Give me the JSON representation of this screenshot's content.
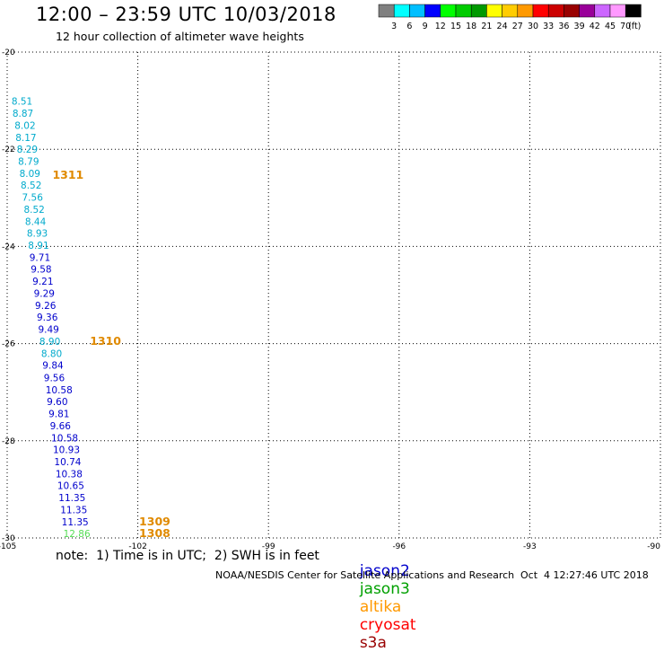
{
  "header": {
    "title": "12:00 – 23:59 UTC 10/03/2018",
    "subtitle": "12 hour collection of altimeter wave heights"
  },
  "colorbar": {
    "colors": [
      "#808080",
      "#00ffff",
      "#00bfff",
      "#0000ff",
      "#00ff00",
      "#00cc00",
      "#009900",
      "#ffff00",
      "#ffcc00",
      "#ff9900",
      "#ff0000",
      "#cc0000",
      "#990000",
      "#990099",
      "#cc66ff",
      "#ff99ff",
      "#000000"
    ],
    "labels": [
      "3",
      "6",
      "9",
      "12",
      "15",
      "18",
      "21",
      "24",
      "27",
      "30",
      "33",
      "36",
      "39",
      "42",
      "45",
      "70"
    ],
    "unit": "(ft)"
  },
  "chart_data": {
    "type": "scatter",
    "x_axis": {
      "range": [
        -105,
        -90
      ],
      "ticks": [
        -105,
        -102,
        -99,
        -96,
        -93,
        -90
      ],
      "tick_labels": [
        "-105",
        "-102",
        "-99",
        "-96",
        "-93",
        "-90"
      ]
    },
    "y_axis": {
      "range": [
        -30,
        -20
      ],
      "ticks": [
        -30,
        -28,
        -26,
        -24,
        -22,
        -20
      ],
      "tick_labels": [
        "-30",
        "-28",
        "-26",
        "-24",
        "-22",
        "-20"
      ]
    },
    "grid": true,
    "points": [
      {
        "lon": -104.9,
        "lat": -21.08,
        "value": "8.51",
        "sat": "altika"
      },
      {
        "lon": -104.88,
        "lat": -21.33,
        "value": "8.87",
        "sat": "altika"
      },
      {
        "lon": -104.83,
        "lat": -21.58,
        "value": "8.02",
        "sat": "altika"
      },
      {
        "lon": -104.81,
        "lat": -21.83,
        "value": "8.17",
        "sat": "altika"
      },
      {
        "lon": -104.78,
        "lat": -22.07,
        "value": "8.29",
        "sat": "altika"
      },
      {
        "lon": -104.75,
        "lat": -22.32,
        "value": "8.79",
        "sat": "altika"
      },
      {
        "lon": -104.72,
        "lat": -22.57,
        "value": "8.09",
        "sat": "altika"
      },
      {
        "lon": -104.69,
        "lat": -22.81,
        "value": "8.52",
        "sat": "altika"
      },
      {
        "lon": -104.66,
        "lat": -23.06,
        "value": "7.56",
        "sat": "altika"
      },
      {
        "lon": -104.62,
        "lat": -23.31,
        "value": "8.52",
        "sat": "altika"
      },
      {
        "lon": -104.59,
        "lat": -23.56,
        "value": "8.44",
        "sat": "altika"
      },
      {
        "lon": -104.55,
        "lat": -23.8,
        "value": "8.93",
        "sat": "altika"
      },
      {
        "lon": -104.52,
        "lat": -24.05,
        "value": "8.91",
        "sat": "altika"
      },
      {
        "lon": -104.49,
        "lat": -24.3,
        "value": "9.71",
        "sat": "jason2"
      },
      {
        "lon": -104.46,
        "lat": -24.54,
        "value": "9.58",
        "sat": "jason2"
      },
      {
        "lon": -104.42,
        "lat": -24.79,
        "value": "9.21",
        "sat": "jason2"
      },
      {
        "lon": -104.39,
        "lat": -25.04,
        "value": "9.29",
        "sat": "jason2"
      },
      {
        "lon": -104.36,
        "lat": -25.29,
        "value": "9.26",
        "sat": "jason2"
      },
      {
        "lon": -104.32,
        "lat": -25.53,
        "value": "9.36",
        "sat": "jason2"
      },
      {
        "lon": -104.29,
        "lat": -25.78,
        "value": "9.49",
        "sat": "jason2"
      },
      {
        "lon": -104.26,
        "lat": -26.03,
        "value": "8.90",
        "sat": "altika"
      },
      {
        "lon": -104.22,
        "lat": -26.28,
        "value": "8.80",
        "sat": "altika"
      },
      {
        "lon": -104.19,
        "lat": -26.52,
        "value": "9.84",
        "sat": "jason2"
      },
      {
        "lon": -104.16,
        "lat": -26.77,
        "value": "9.56",
        "sat": "jason2"
      },
      {
        "lon": -104.12,
        "lat": -27.02,
        "value": "10.58",
        "sat": "jason2"
      },
      {
        "lon": -104.09,
        "lat": -27.26,
        "value": "9.60",
        "sat": "jason2"
      },
      {
        "lon": -104.05,
        "lat": -27.51,
        "value": "9.81",
        "sat": "jason2"
      },
      {
        "lon": -104.02,
        "lat": -27.76,
        "value": "9.66",
        "sat": "jason2"
      },
      {
        "lon": -103.99,
        "lat": -28.01,
        "value": "10.58",
        "sat": "jason2"
      },
      {
        "lon": -103.95,
        "lat": -28.25,
        "value": "10.93",
        "sat": "jason2"
      },
      {
        "lon": -103.92,
        "lat": -28.5,
        "value": "10.74",
        "sat": "jason2"
      },
      {
        "lon": -103.89,
        "lat": -28.75,
        "value": "10.38",
        "sat": "jason2"
      },
      {
        "lon": -103.85,
        "lat": -28.99,
        "value": "10.65",
        "sat": "jason2"
      },
      {
        "lon": -103.82,
        "lat": -29.24,
        "value": "11.35",
        "sat": "jason2"
      },
      {
        "lon": -103.78,
        "lat": -29.49,
        "value": "11.35",
        "sat": "jason2"
      },
      {
        "lon": -103.75,
        "lat": -29.74,
        "value": "11.35",
        "sat": "jason2"
      },
      {
        "lon": -103.71,
        "lat": -29.98,
        "value": "12.86",
        "sat": "jason3"
      }
    ],
    "time_labels": [
      {
        "lon": -103.96,
        "lat": -22.61,
        "text": "1311"
      },
      {
        "lon": -103.1,
        "lat": -26.03,
        "text": "1310"
      },
      {
        "lon": -101.97,
        "lat": -29.74,
        "text": "1309"
      },
      {
        "lon": -101.97,
        "lat": -29.98,
        "text": "1308"
      }
    ]
  },
  "sat_colors": {
    "jason2": "#0000cc",
    "jason3": "#00a000",
    "altika": "#ff9900",
    "cryosat": "#ff0000",
    "s3a": "#990000"
  },
  "value_colors": {
    "altika": "#00aacc",
    "jason2": "#0000cc",
    "jason3": "#55dd55"
  },
  "time_label_color": "#e08a00",
  "legend": {
    "jason2": "jason2",
    "jason3": "jason3",
    "altika": "altika",
    "cryosat": "cryosat",
    "s3a": "s3a"
  },
  "footer": {
    "note": "note:  1) Time is in UTC;  2) SWH is in feet",
    "credit": "NOAA/NESDIS Center for Satellite Applications and Research",
    "timestamp": "Oct  4 12:27:46 UTC 2018"
  }
}
